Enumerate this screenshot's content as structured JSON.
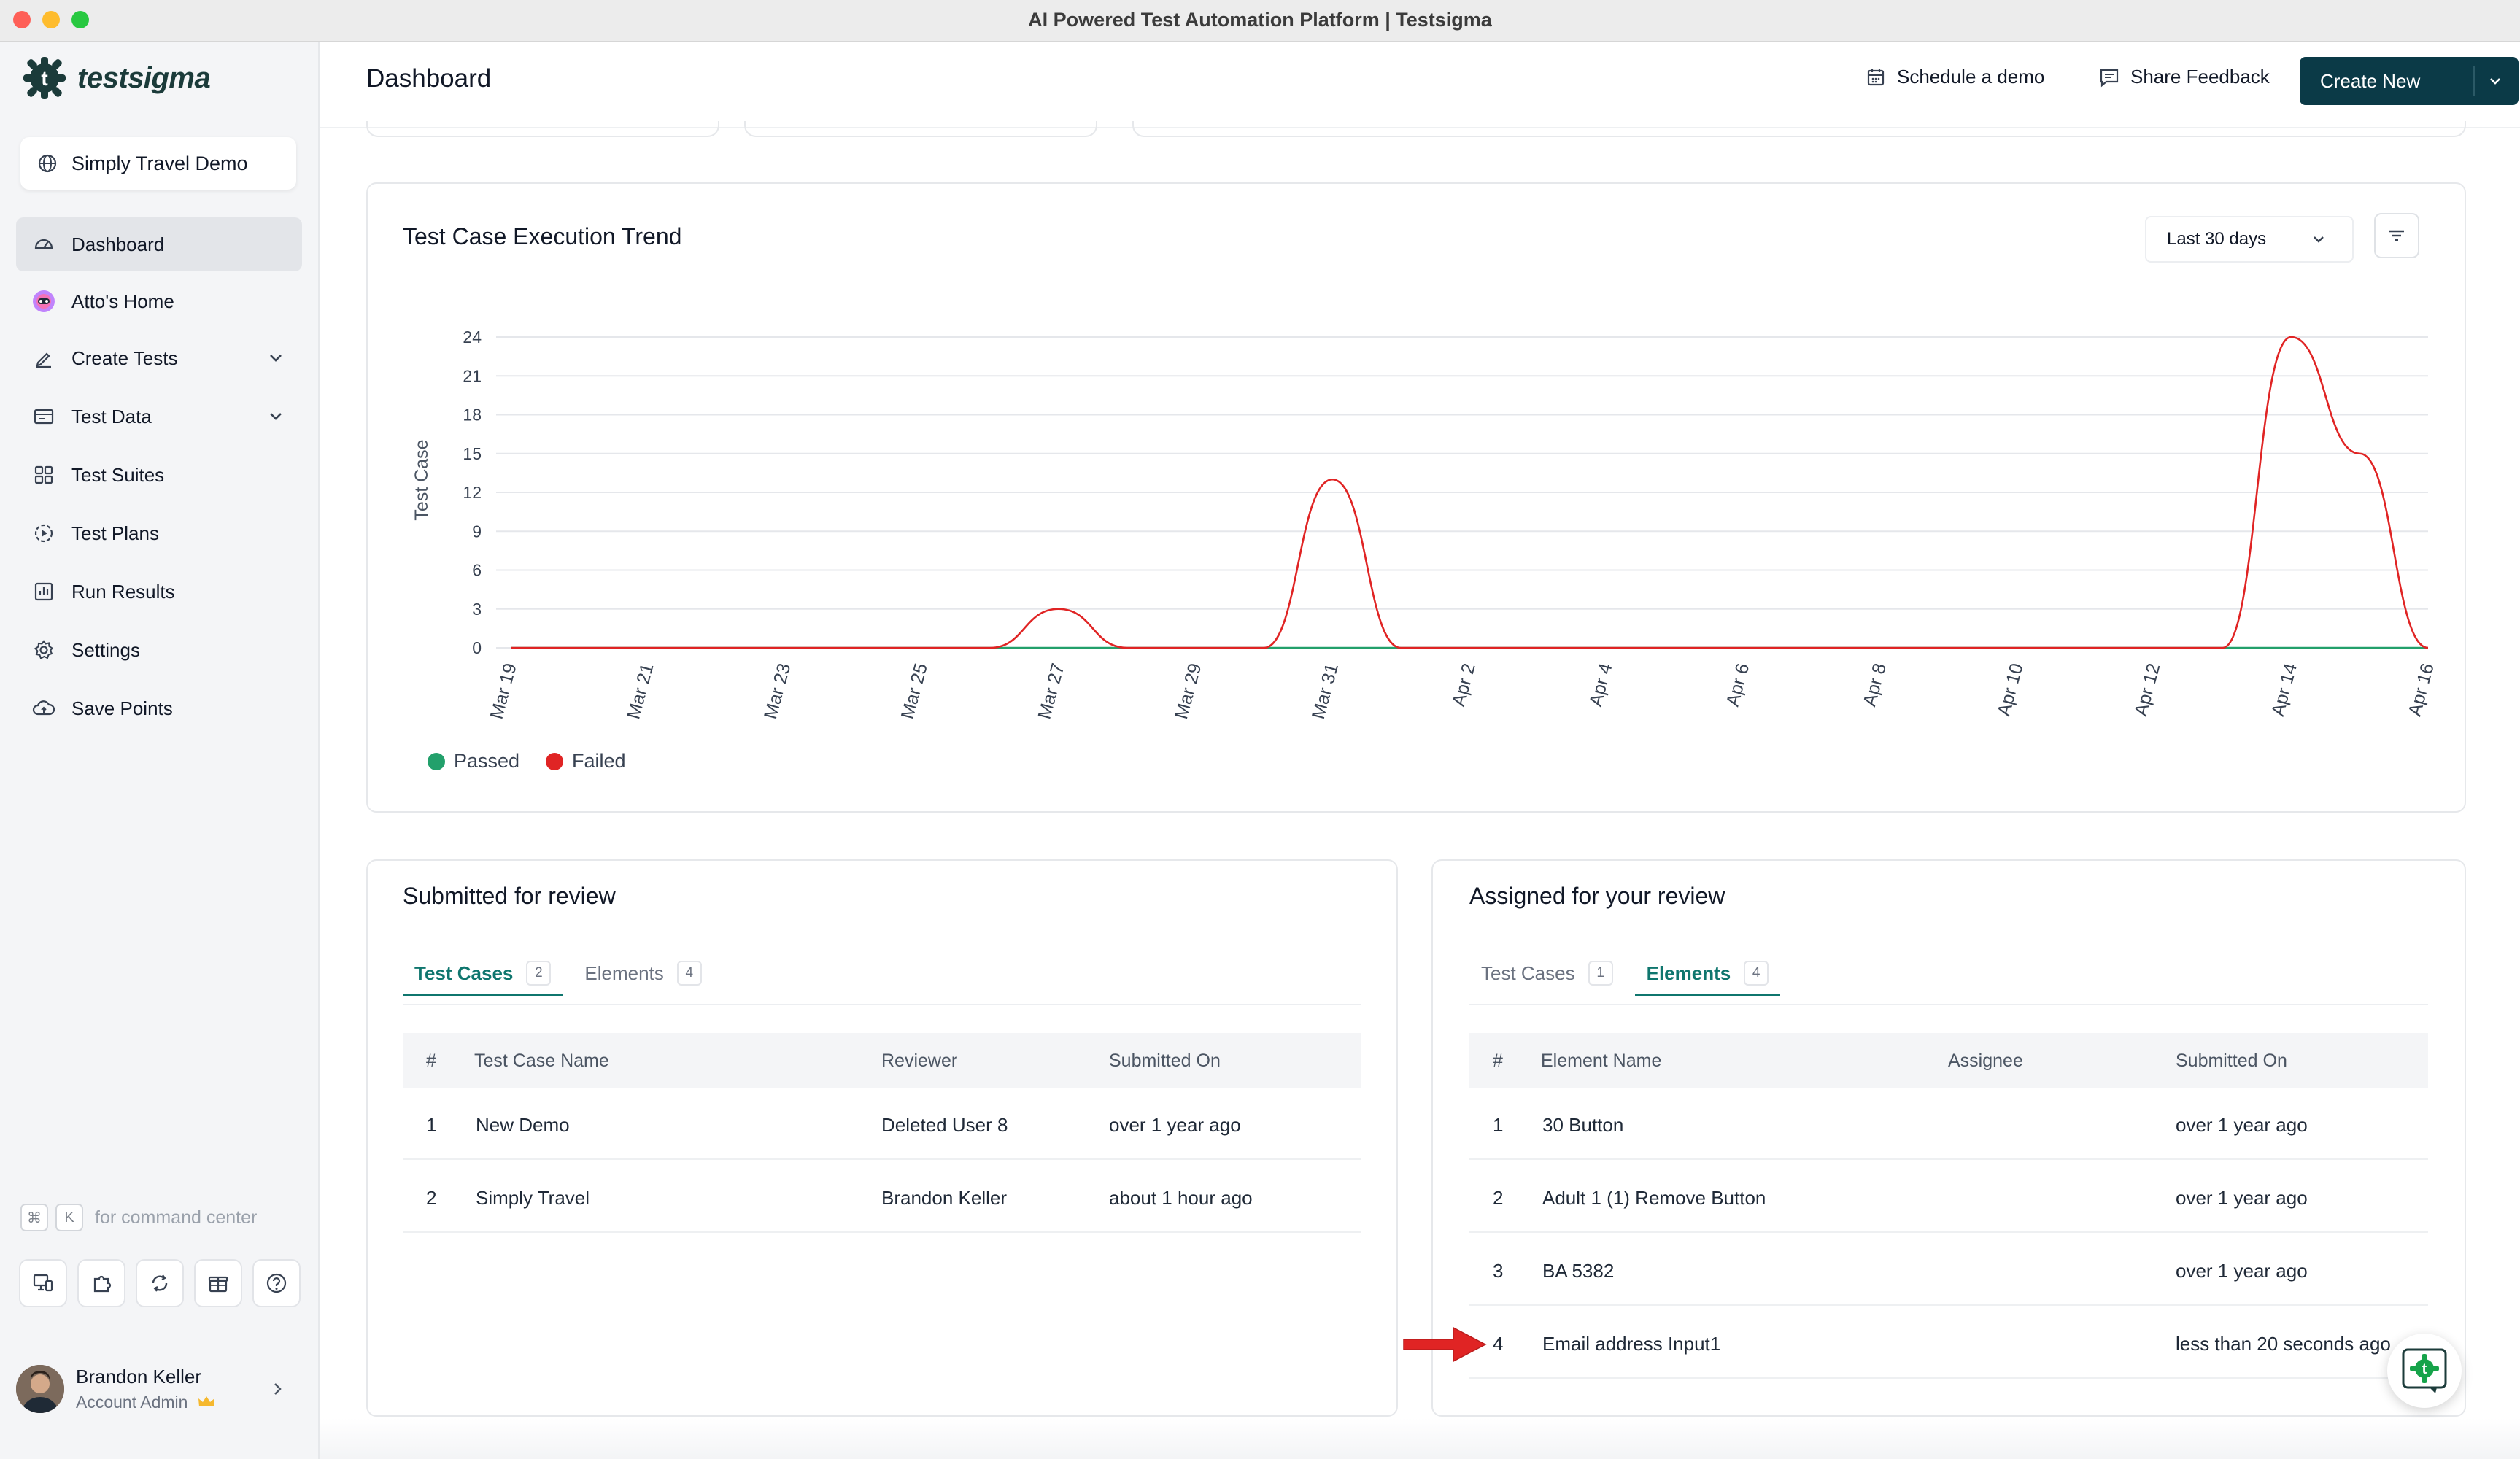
{
  "window": {
    "title": "AI Powered Test Automation Platform | Testsigma"
  },
  "brand": {
    "name": "testsigma",
    "color": "#1b3b3a",
    "accent": "#0b3a47"
  },
  "sidebar": {
    "project": "Simply Travel Demo",
    "items": [
      {
        "label": "Dashboard",
        "icon": "dashboard-icon",
        "active": true
      },
      {
        "label": "Atto's Home",
        "icon": "atto-icon"
      },
      {
        "label": "Create Tests",
        "icon": "pen-icon",
        "expandable": true
      },
      {
        "label": "Test Data",
        "icon": "folder-icon",
        "expandable": true
      },
      {
        "label": "Test Suites",
        "icon": "grid-icon"
      },
      {
        "label": "Test Plans",
        "icon": "play-circle-icon"
      },
      {
        "label": "Run Results",
        "icon": "bar-chart-icon"
      },
      {
        "label": "Settings",
        "icon": "gear-icon"
      },
      {
        "label": "Save Points",
        "icon": "cloud-icon"
      }
    ],
    "command_hint": {
      "key1": "⌘",
      "key2": "K",
      "text": "for command center"
    },
    "user": {
      "name": "Brandon Keller",
      "role": "Account Admin"
    }
  },
  "header": {
    "title": "Dashboard",
    "schedule": "Schedule a demo",
    "feedback": "Share Feedback",
    "create": "Create New"
  },
  "trend": {
    "title": "Test Case Execution Trend",
    "range": "Last 30 days"
  },
  "chart_data": {
    "type": "line",
    "ylabel": "Test Case",
    "xlabel": "",
    "ylim": [
      0,
      24
    ],
    "yticks": [
      0,
      3,
      6,
      9,
      12,
      15,
      18,
      21,
      24
    ],
    "x": [
      "Mar 19",
      "Mar 20",
      "Mar 21",
      "Mar 22",
      "Mar 23",
      "Mar 24",
      "Mar 25",
      "Mar 26",
      "Mar 27",
      "Mar 28",
      "Mar 29",
      "Mar 30",
      "Mar 31",
      "Apr 1",
      "Apr 2",
      "Apr 3",
      "Apr 4",
      "Apr 5",
      "Apr 6",
      "Apr 7",
      "Apr 8",
      "Apr 9",
      "Apr 10",
      "Apr 11",
      "Apr 12",
      "Apr 13",
      "Apr 14",
      "Apr 15",
      "Apr 16"
    ],
    "xticks": [
      "Mar 19",
      "Mar 21",
      "Mar 23",
      "Mar 25",
      "Mar 27",
      "Mar 29",
      "Mar 31",
      "Apr 2",
      "Apr 4",
      "Apr 6",
      "Apr 8",
      "Apr 10",
      "Apr 12",
      "Apr 14",
      "Apr 16"
    ],
    "series": [
      {
        "name": "Passed",
        "color": "#22a06b",
        "values": [
          0,
          0,
          0,
          0,
          0,
          0,
          0,
          0,
          0,
          0,
          0,
          0,
          0,
          0,
          0,
          0,
          0,
          0,
          0,
          0,
          0,
          0,
          0,
          0,
          0,
          0,
          0,
          0,
          0
        ]
      },
      {
        "name": "Failed",
        "color": "#e02424",
        "values": [
          0,
          0,
          0,
          0,
          0,
          0,
          0,
          0,
          3,
          0,
          0,
          0,
          13,
          0,
          0,
          0,
          0,
          0,
          0,
          0,
          0,
          0,
          0,
          0,
          0,
          0,
          24,
          15,
          0
        ]
      }
    ],
    "legend": "bottom-left"
  },
  "submitted": {
    "title": "Submitted for review",
    "tabs": [
      {
        "label": "Test Cases",
        "count": "2",
        "active": true
      },
      {
        "label": "Elements",
        "count": "4"
      }
    ],
    "columns": [
      "#",
      "Test Case Name",
      "Reviewer",
      "Submitted On"
    ],
    "rows": [
      [
        "1",
        "New Demo",
        "Deleted User 8",
        "over 1 year ago"
      ],
      [
        "2",
        "Simply Travel",
        "Brandon Keller",
        "about 1 hour ago"
      ]
    ]
  },
  "assigned": {
    "title": "Assigned for your review",
    "tabs": [
      {
        "label": "Test Cases",
        "count": "1"
      },
      {
        "label": "Elements",
        "count": "4",
        "active": true
      }
    ],
    "columns": [
      "#",
      "Element Name",
      "Assignee",
      "Submitted On"
    ],
    "rows": [
      [
        "1",
        "30 Button",
        "",
        "over 1 year ago"
      ],
      [
        "2",
        "Adult 1 (1) Remove Button",
        "",
        "over 1 year ago"
      ],
      [
        "3",
        "BA 5382",
        "",
        "over 1 year ago"
      ],
      [
        "4",
        "Email address Input1",
        "",
        "less than 20 seconds ago"
      ]
    ]
  },
  "annotation": {
    "icon": "red-arrow-icon",
    "color": "#e02424"
  }
}
